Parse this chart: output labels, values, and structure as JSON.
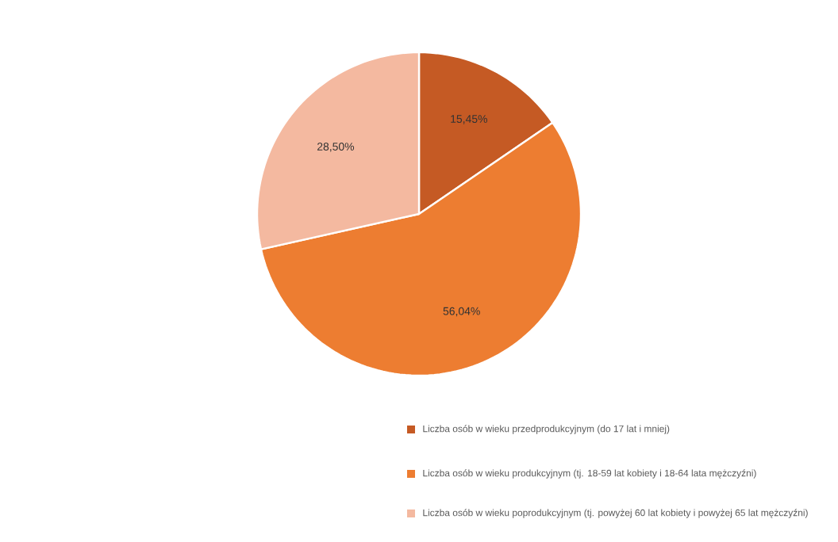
{
  "chart_data": {
    "type": "pie",
    "categories": [
      "Liczba osób w wieku przedprodukcyjnym (do 17 lat i mniej)",
      "Liczba osób w wieku produkcyjnym (tj. 18-59 lat kobiety i 18-64 lata mężczyźni)",
      "Liczba osób w wieku poprodukcyjnym (tj. powyżej 60 lat kobiety i powyżej 65 lat mężczyźni)"
    ],
    "values": [
      15.45,
      56.04,
      28.5
    ],
    "colors": [
      "#c55a24",
      "#ed7d31",
      "#f4b9a0"
    ],
    "value_labels": [
      "15,45%",
      "56,04%",
      "28,50%"
    ],
    "legend": "bottom"
  }
}
